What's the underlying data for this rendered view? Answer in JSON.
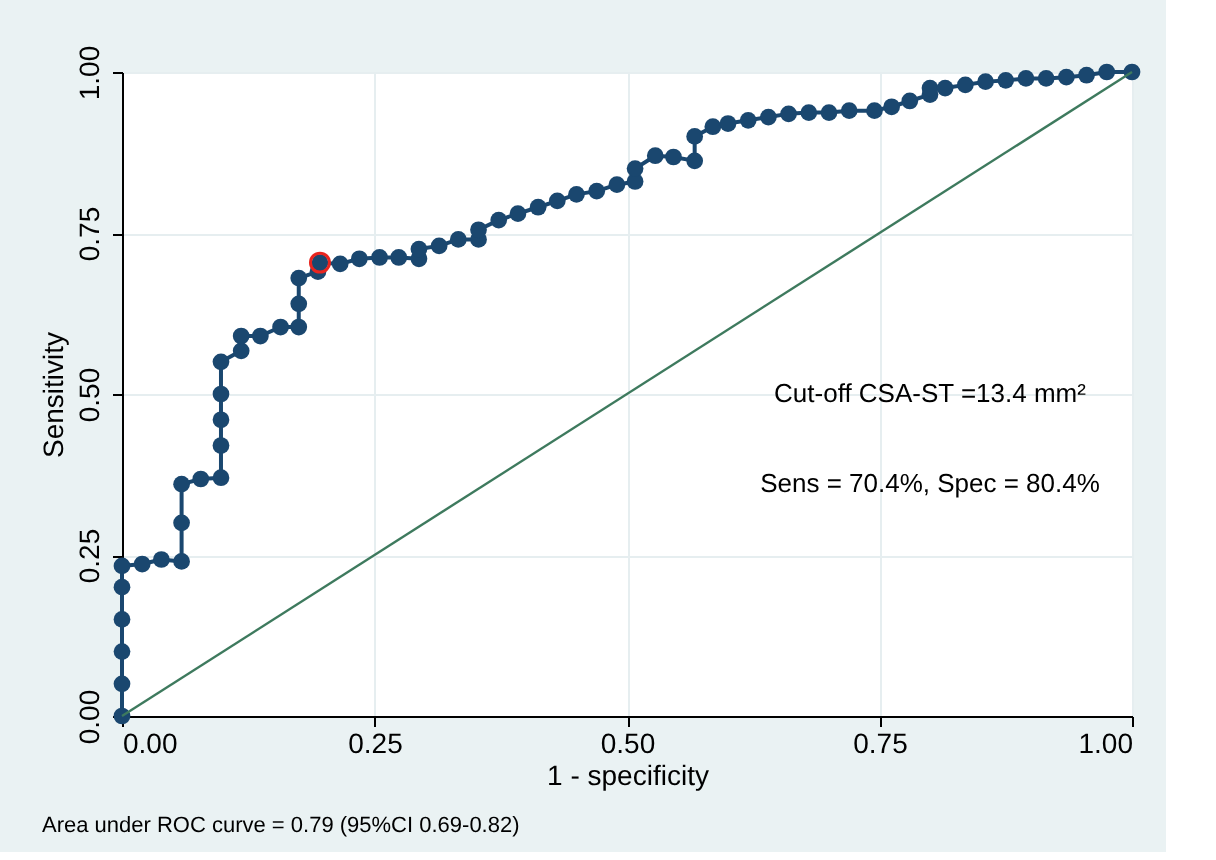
{
  "chart_data": {
    "type": "line",
    "xlabel": "1 - specificity",
    "ylabel": "Sensitivity",
    "xlim": [
      0,
      1
    ],
    "ylim": [
      0,
      1
    ],
    "xticks": [
      {
        "value": 0,
        "label": "0.00"
      },
      {
        "value": 0.25,
        "label": "0.25"
      },
      {
        "value": 0.5,
        "label": "0.50"
      },
      {
        "value": 0.75,
        "label": "0.75"
      },
      {
        "value": 1,
        "label": "1.00"
      }
    ],
    "yticks": [
      {
        "value": 0,
        "label": "0.00"
      },
      {
        "value": 0.25,
        "label": "0.25"
      },
      {
        "value": 0.5,
        "label": "0.50"
      },
      {
        "value": 0.75,
        "label": "0.75"
      },
      {
        "value": 1,
        "label": "1.00"
      }
    ],
    "grid": true,
    "series": [
      {
        "marker": "circle",
        "color": "#1a476f",
        "x": [
          0,
          0,
          0,
          0,
          0,
          0,
          0.02,
          0.039,
          0.059,
          0.059,
          0.059,
          0.078,
          0.098,
          0.098,
          0.098,
          0.098,
          0.098,
          0.118,
          0.118,
          0.137,
          0.157,
          0.175,
          0.175,
          0.175,
          0.194,
          0.196,
          0.216,
          0.235,
          0.255,
          0.274,
          0.294,
          0.294,
          0.314,
          0.333,
          0.353,
          0.353,
          0.373,
          0.392,
          0.412,
          0.431,
          0.45,
          0.47,
          0.49,
          0.508,
          0.508,
          0.528,
          0.546,
          0.567,
          0.567,
          0.585,
          0.6,
          0.62,
          0.64,
          0.66,
          0.68,
          0.7,
          0.72,
          0.745,
          0.762,
          0.78,
          0.8,
          0.8,
          0.815,
          0.835,
          0.855,
          0.875,
          0.895,
          0.915,
          0.935,
          0.955,
          0.975,
          1.0
        ],
        "values": [
          0,
          0.05,
          0.1,
          0.15,
          0.2,
          0.233,
          0.236,
          0.243,
          0.24,
          0.3,
          0.36,
          0.368,
          0.37,
          0.42,
          0.46,
          0.5,
          0.55,
          0.567,
          0.59,
          0.59,
          0.604,
          0.604,
          0.64,
          0.68,
          0.69,
          0.704,
          0.702,
          0.71,
          0.712,
          0.712,
          0.71,
          0.725,
          0.73,
          0.74,
          0.74,
          0.755,
          0.77,
          0.78,
          0.79,
          0.8,
          0.81,
          0.815,
          0.825,
          0.83,
          0.85,
          0.87,
          0.868,
          0.862,
          0.9,
          0.915,
          0.92,
          0.925,
          0.93,
          0.935,
          0.937,
          0.937,
          0.94,
          0.94,
          0.946,
          0.955,
          0.965,
          0.975,
          0.975,
          0.98,
          0.985,
          0.987,
          0.99,
          0.99,
          0.992,
          0.995,
          1.0,
          1.0
        ]
      },
      {
        "marker": "none",
        "color": "#3e7a5e",
        "x": [
          0,
          1
        ],
        "values": [
          0,
          1
        ]
      },
      {
        "type": "scatter",
        "marker": "circle",
        "color": "#e8251f",
        "x": [
          0.196
        ],
        "values": [
          0.704
        ]
      }
    ],
    "annotations": [
      "Cut-off CSA-ST =13.4 mm²",
      "Sens = 70.4%, Spec = 80.4%",
      "Area under ROC curve = 0.79 (95%CI 0.69-0.82)"
    ]
  }
}
